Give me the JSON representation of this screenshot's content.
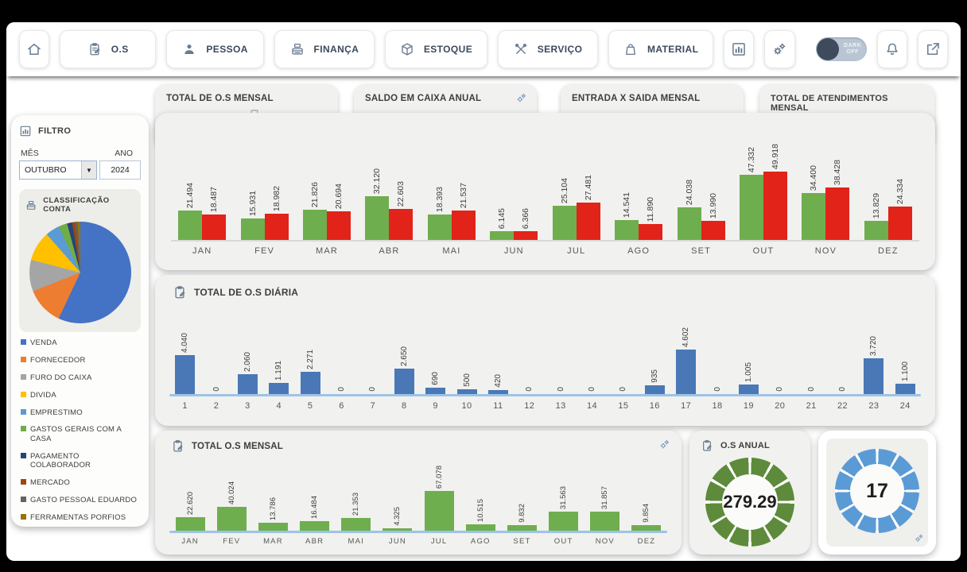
{
  "nav": {
    "items": [
      {
        "label": "",
        "icon": "home"
      },
      {
        "label": "O.S",
        "icon": "clipboard"
      },
      {
        "label": "PESSOA",
        "icon": "person"
      },
      {
        "label": "FINANÇA",
        "icon": "register"
      },
      {
        "label": "ESTOQUE",
        "icon": "box"
      },
      {
        "label": "SERVIÇO",
        "icon": "tools"
      },
      {
        "label": "MATERIAL",
        "icon": "bag"
      }
    ],
    "toggle_lines": [
      "DARK",
      "OFF"
    ]
  },
  "sidebar": {
    "filter_title": "FILTRO",
    "month_label": "MÊS",
    "month_value": "OUTUBRO",
    "year_label": "ANO",
    "year_value": "2024"
  },
  "header_cards": [
    {
      "title": "TOTAL DE O.S MENSAL",
      "gear": false
    },
    {
      "title": "SALDO EM CAIXA ANUAL",
      "gear": true
    },
    {
      "title": "ENTRADA X SAIDA MENSAL",
      "gear": false
    },
    {
      "title": "TOTAL DE ATENDIMENTOS MENSAL",
      "gear": false
    }
  ],
  "colors": {
    "entrada_green": "#6fae4e",
    "saida_red": "#e2231a",
    "daily_blue": "#4a78b6",
    "donut_green": "#5d8b3b",
    "donut_blue": "#5b9bd5",
    "axis_blue": "#9dc3e6"
  },
  "chart_data": [
    {
      "id": "entrada_saida",
      "type": "bar",
      "title": "ENTRADA X SAIDA MENSAL",
      "categories": [
        "JAN",
        "FEV",
        "MAR",
        "ABR",
        "MAI",
        "JUN",
        "JUL",
        "AGO",
        "SET",
        "OUT",
        "NOV",
        "DEZ"
      ],
      "series": [
        {
          "name": "ENTRADA",
          "color": "#6fae4e",
          "values": [
            21494,
            15931,
            21826,
            32120,
            18393,
            6145,
            25104,
            14541,
            24038,
            47332,
            34400,
            13829
          ],
          "labels": [
            "21.494",
            "15.931",
            "21.826",
            "32.120",
            "18.393",
            "6.145",
            "25.104",
            "14.541",
            "24.038",
            "47.332",
            "34.400",
            "13.829"
          ]
        },
        {
          "name": "SAIDA",
          "color": "#e2231a",
          "values": [
            18487,
            18982,
            20694,
            22603,
            21537,
            6366,
            27481,
            11890,
            13990,
            49918,
            38428,
            24334
          ],
          "labels": [
            "18.487",
            "18.982",
            "20.694",
            "22.603",
            "21.537",
            "6.366",
            "27.481",
            "11.890",
            "13.990",
            "49.918",
            "38.428",
            "24.334"
          ]
        }
      ]
    },
    {
      "id": "os_diaria",
      "type": "bar",
      "title": "TOTAL DE O.S DIÁRIA",
      "categories": [
        "1",
        "2",
        "3",
        "4",
        "5",
        "6",
        "7",
        "8",
        "9",
        "10",
        "11",
        "12",
        "13",
        "14",
        "15",
        "16",
        "17",
        "18",
        "19",
        "20",
        "21",
        "22",
        "23",
        "24"
      ],
      "series": [
        {
          "name": "O.S",
          "color": "#4a78b6",
          "values": [
            4040,
            0,
            2060,
            1191,
            2271,
            0,
            0,
            2650,
            690,
            500,
            420,
            0,
            0,
            0,
            0,
            935,
            4602,
            0,
            1005,
            0,
            0,
            0,
            3720,
            1100
          ],
          "labels": [
            "4.040",
            "0",
            "2.060",
            "1.191",
            "2.271",
            "0",
            "0",
            "2.650",
            "690",
            "500",
            "420",
            "0",
            "0",
            "0",
            "0",
            "935",
            "4.602",
            "0",
            "1.005",
            "0",
            "0",
            "0",
            "3.720",
            "1.100"
          ]
        }
      ]
    },
    {
      "id": "os_mensal",
      "type": "bar",
      "title": "TOTAL O.S MENSAL",
      "categories": [
        "JAN",
        "FEV",
        "MAR",
        "ABR",
        "MAI",
        "JUN",
        "JUL",
        "AGO",
        "SET",
        "OUT",
        "NOV",
        "DEZ"
      ],
      "series": [
        {
          "name": "O.S",
          "color": "#6fae4e",
          "values": [
            22620,
            40024,
            13786,
            16484,
            21353,
            4325,
            67078,
            10515,
            9832,
            31563,
            31857,
            9854
          ],
          "labels": [
            "22.620",
            "40.024",
            "13.786",
            "16.484",
            "21.353",
            "4.325",
            "67.078",
            "10.515",
            "9.832",
            "31.563",
            "31.857",
            "9.854"
          ]
        }
      ]
    },
    {
      "id": "os_anual",
      "type": "donut",
      "title": "O.S ANUAL",
      "value": "279.29",
      "segments": 12,
      "color": "#5d8b3b"
    },
    {
      "id": "atendimentos_gauge",
      "type": "donut",
      "title": "",
      "value": "17",
      "segments": 12,
      "color": "#5b9bd5"
    },
    {
      "id": "classificacao",
      "type": "pie",
      "title": "CLASSIFICAÇÃO CONTA",
      "slices": [
        {
          "label": "VENDA",
          "color": "#4472c4",
          "value": 57
        },
        {
          "label": "FORNECEDOR",
          "color": "#ed7d31",
          "value": 12
        },
        {
          "label": "FURO DO CAIXA",
          "color": "#a5a5a5",
          "value": 10
        },
        {
          "label": "DIVIDA",
          "color": "#ffc000",
          "value": 9.5
        },
        {
          "label": "EMPRESTIMO",
          "color": "#5b9bd5",
          "value": 4.5
        },
        {
          "label": "GASTOS GERAIS COM A CASA",
          "color": "#70ad47",
          "value": 2.8
        },
        {
          "label": "PAGAMENTO COLABORADOR",
          "color": "#264478",
          "value": 1.6
        },
        {
          "label": "MERCADO",
          "color": "#9e480e",
          "value": 1.0
        },
        {
          "label": "GASTO PESSOAL EDUARDO",
          "color": "#636363",
          "value": 0.8
        },
        {
          "label": "FERRAMENTAS PORFIOS",
          "color": "#997300",
          "value": 0.8
        }
      ]
    }
  ]
}
